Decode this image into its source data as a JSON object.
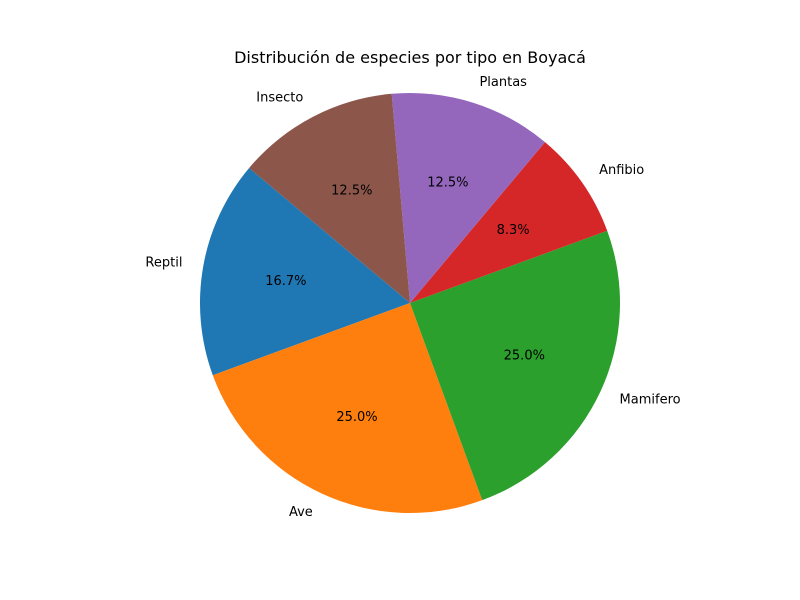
{
  "chart_data": {
    "type": "pie",
    "title": "Distribución de especies por tipo en Boyacá",
    "start_angle_deg": 140,
    "direction": "counterclockwise",
    "slices": [
      {
        "label": "Reptil",
        "value": 16.7,
        "pct_label": "16.7%",
        "color": "#1f77b4"
      },
      {
        "label": "Ave",
        "value": 25.0,
        "pct_label": "25.0%",
        "color": "#ff7f0e"
      },
      {
        "label": "Mamifero",
        "value": 25.0,
        "pct_label": "25.0%",
        "color": "#2ca02c"
      },
      {
        "label": "Anfibio",
        "value": 8.3,
        "pct_label": "8.3%",
        "color": "#d62728"
      },
      {
        "label": "Plantas",
        "value": 12.5,
        "pct_label": "12.5%",
        "color": "#9467bd"
      },
      {
        "label": "Insecto",
        "value": 12.5,
        "pct_label": "12.5%",
        "color": "#8c564b"
      }
    ]
  }
}
